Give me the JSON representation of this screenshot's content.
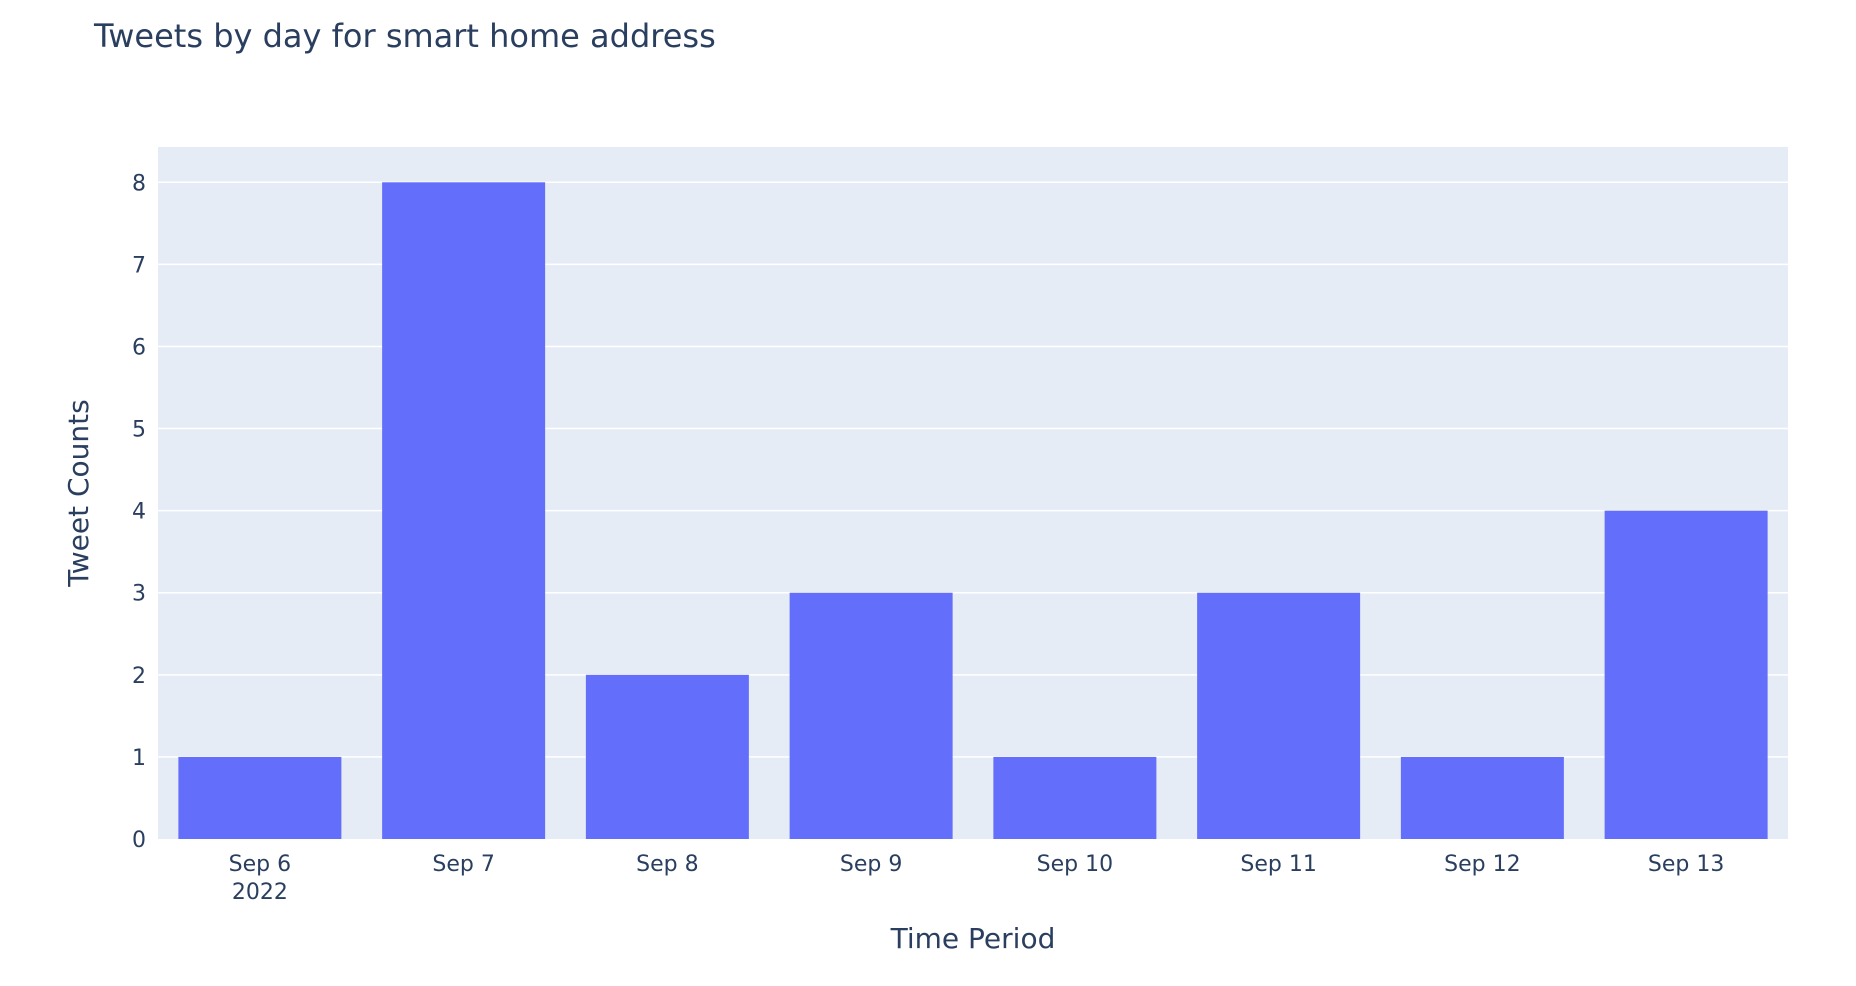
{
  "chart_data": {
    "type": "bar",
    "title": "Tweets by day for smart home address",
    "xlabel": "Time Period",
    "ylabel": "Tweet Counts",
    "categories": [
      "Sep 6",
      "Sep 7",
      "Sep 8",
      "Sep 9",
      "Sep 10",
      "Sep 11",
      "Sep 12",
      "Sep 13"
    ],
    "x_year_label": "2022",
    "values": [
      1,
      8,
      2,
      3,
      1,
      3,
      1,
      4
    ],
    "ylim": [
      0,
      8.43
    ],
    "yticks": [
      0,
      1,
      2,
      3,
      4,
      5,
      6,
      7,
      8
    ],
    "grid": true,
    "legend": "none",
    "colors": {
      "bar": "#636efa",
      "plot_background": "#e5ecf6",
      "grid": "#ffffff",
      "text": "#2a3f5f"
    }
  }
}
